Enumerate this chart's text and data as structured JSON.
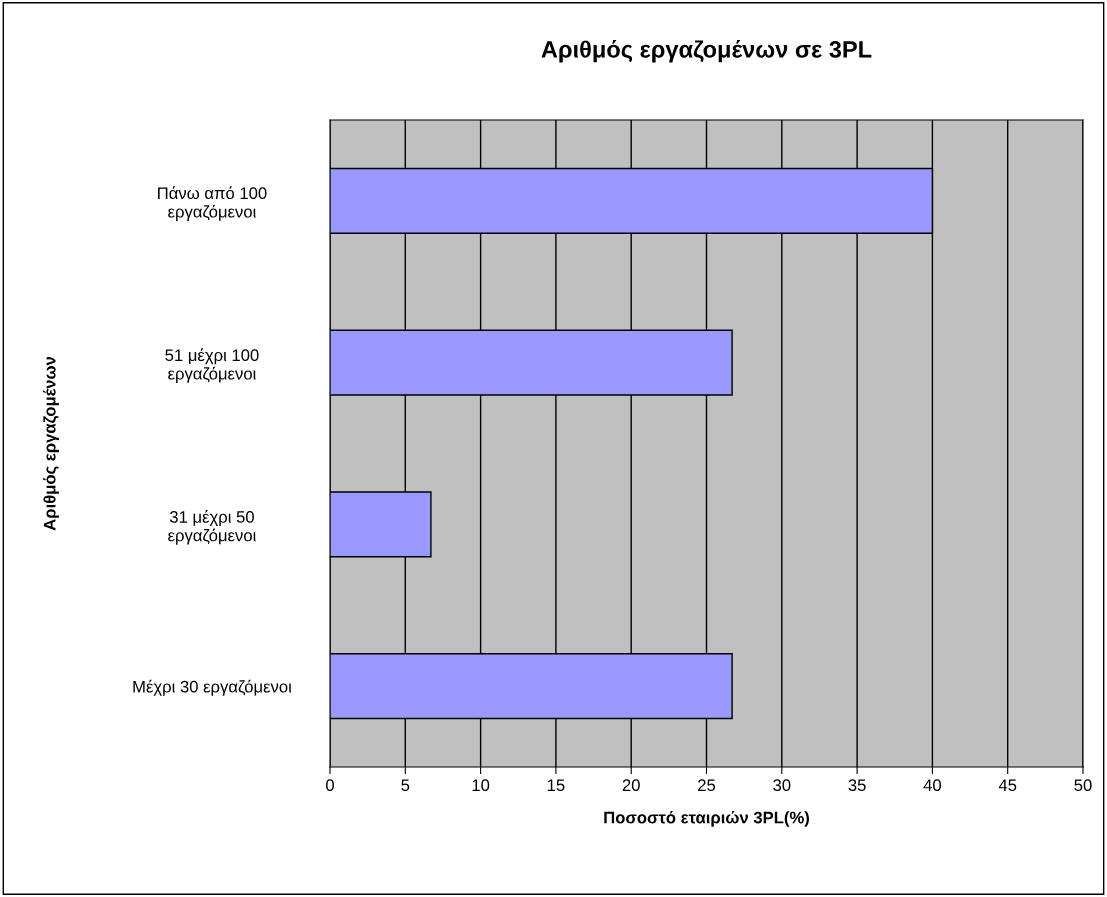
{
  "chart_data": {
    "type": "bar",
    "orientation": "horizontal",
    "title": "Αριθμός εργαζομένων σε 3PL",
    "xlabel": "Ποσοστό εταιριών 3PL(%)",
    "ylabel": "Αριθμός εργαζομένων",
    "categories": [
      "Πάνω από 100\nεργαζόμενοι",
      "51 μέχρι 100\nεργαζόμενοι",
      "31 μέχρι 50\nεργαζόμενοι",
      "Μέχρι 30 εργαζόμενοι"
    ],
    "values": [
      40,
      26.7,
      6.7,
      26.7
    ],
    "color": "#9999ff",
    "xlim": [
      0,
      50
    ],
    "xticks": [
      0,
      5,
      10,
      15,
      20,
      25,
      30,
      35,
      40,
      45,
      50
    ],
    "grid": "x"
  }
}
